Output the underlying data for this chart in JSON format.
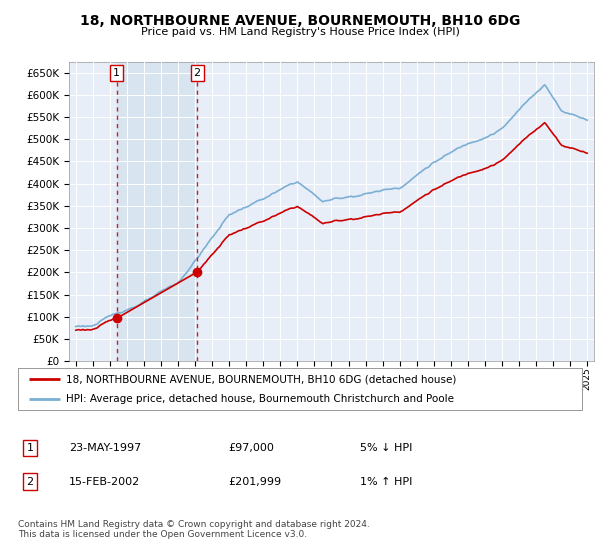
{
  "title": "18, NORTHBOURNE AVENUE, BOURNEMOUTH, BH10 6DG",
  "subtitle": "Price paid vs. HM Land Registry's House Price Index (HPI)",
  "ylim": [
    0,
    675000
  ],
  "yticks": [
    0,
    50000,
    100000,
    150000,
    200000,
    250000,
    300000,
    350000,
    400000,
    450000,
    500000,
    550000,
    600000,
    650000
  ],
  "ytick_labels": [
    "£0",
    "£50K",
    "£100K",
    "£150K",
    "£200K",
    "£250K",
    "£300K",
    "£350K",
    "£400K",
    "£450K",
    "£500K",
    "£550K",
    "£600K",
    "£650K"
  ],
  "background_color": "#ffffff",
  "plot_bg_color": "#e8eef8",
  "grid_color": "#ffffff",
  "sale1_x": 1997.39,
  "sale1_y": 97000,
  "sale2_x": 2002.12,
  "sale2_y": 201999,
  "sale1_label": "1",
  "sale2_label": "2",
  "legend_line1": "18, NORTHBOURNE AVENUE, BOURNEMOUTH, BH10 6DG (detached house)",
  "legend_line2": "HPI: Average price, detached house, Bournemouth Christchurch and Poole",
  "table_row1": [
    "1",
    "23-MAY-1997",
    "£97,000",
    "5% ↓ HPI"
  ],
  "table_row2": [
    "2",
    "15-FEB-2002",
    "£201,999",
    "1% ↑ HPI"
  ],
  "footer": "Contains HM Land Registry data © Crown copyright and database right 2024.\nThis data is licensed under the Open Government Licence v3.0.",
  "line_color_red": "#cc0000",
  "line_color_blue": "#7bafd4",
  "sale_dot_color": "#cc0000",
  "vline_color": "#cc2222",
  "shade_color": "#d8e4f0",
  "xlim_left": 1994.6,
  "xlim_right": 2025.4
}
